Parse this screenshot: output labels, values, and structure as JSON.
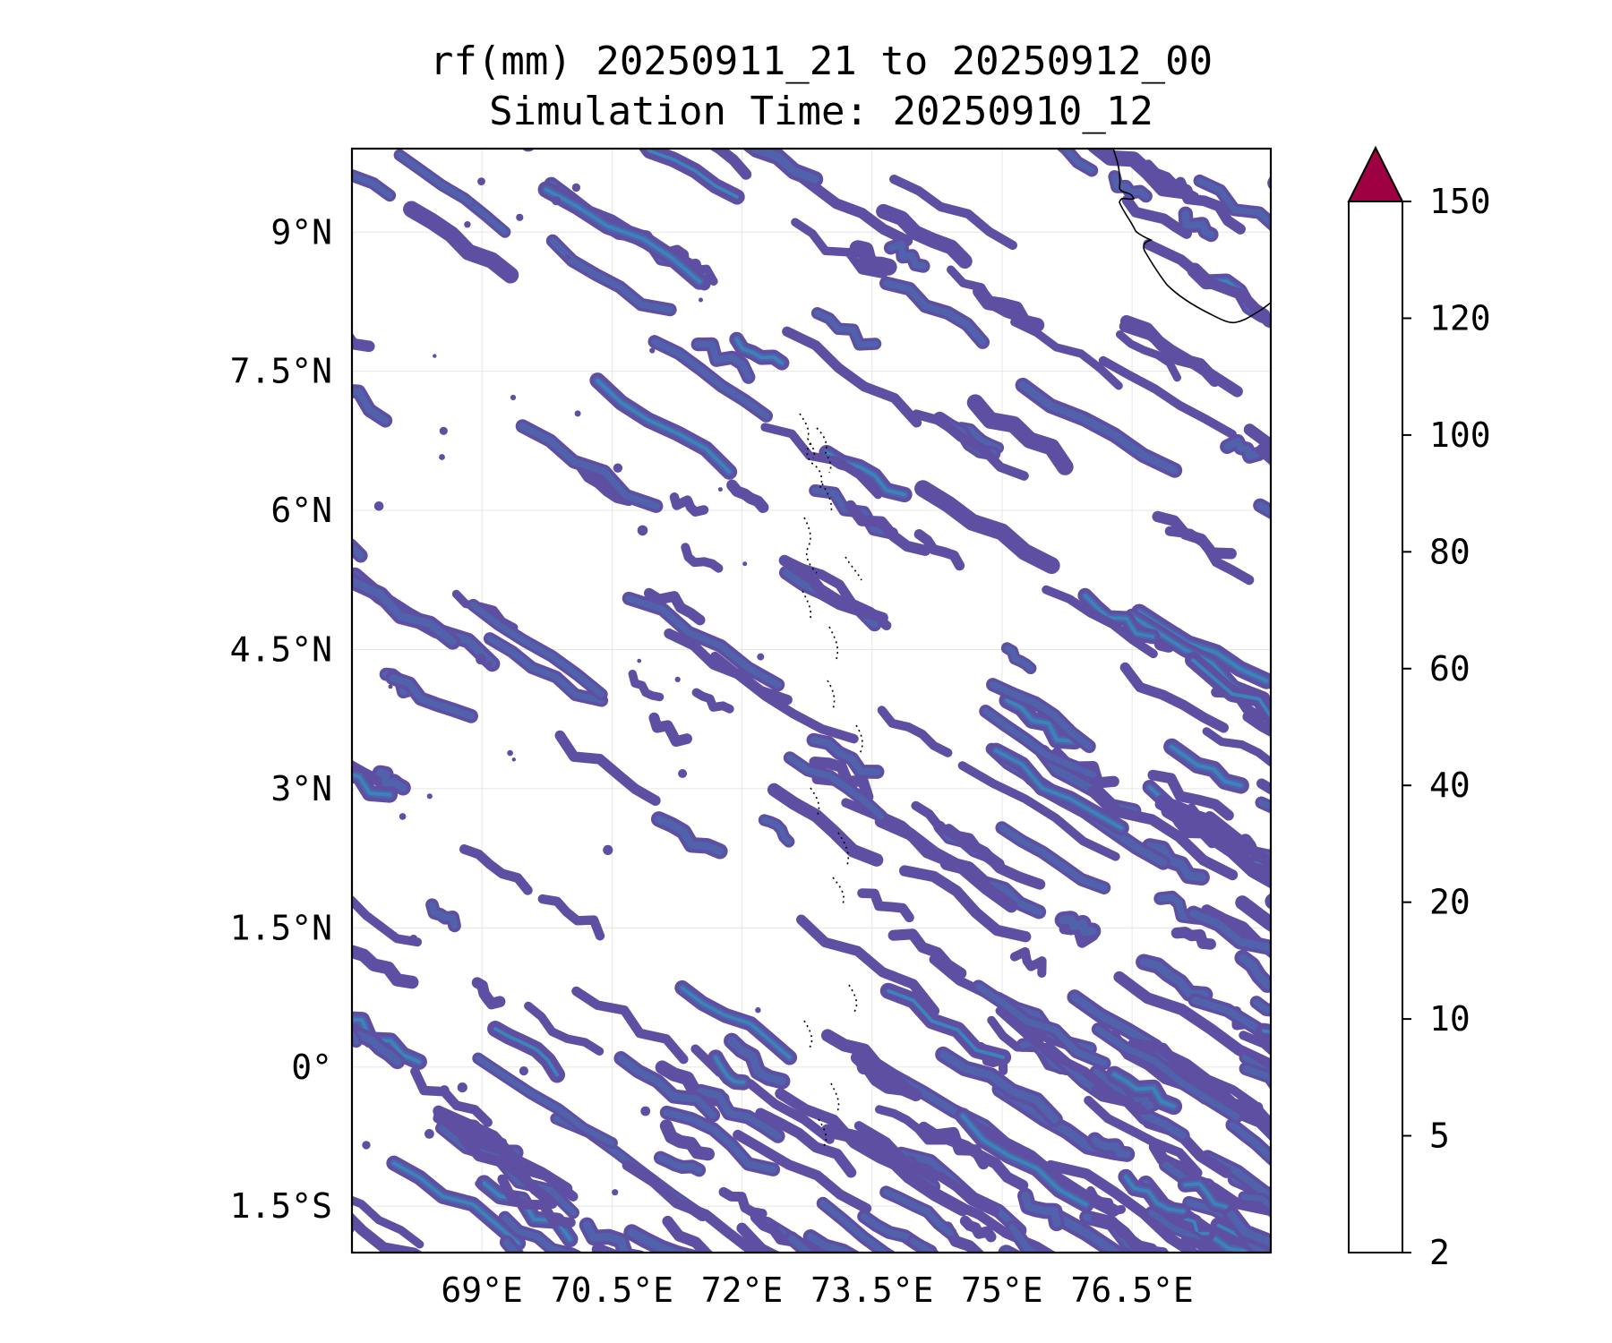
{
  "title": {
    "line1": "rf(mm) 20250911_21 to 20250912_00",
    "line2": "Simulation Time: 20250910_12"
  },
  "map": {
    "lon_range": [
      67.5,
      78.1
    ],
    "lat_range": [
      -2.0,
      9.9
    ],
    "lon_ticks": [
      {
        "value": 69,
        "label": "69°E"
      },
      {
        "value": 70.5,
        "label": "70.5°E"
      },
      {
        "value": 72,
        "label": "72°E"
      },
      {
        "value": 73.5,
        "label": "73.5°E"
      },
      {
        "value": 75,
        "label": "75°E"
      },
      {
        "value": 76.5,
        "label": "76.5°E"
      }
    ],
    "lat_ticks": [
      {
        "value": 9,
        "label": "9°N"
      },
      {
        "value": 7.5,
        "label": "7.5°N"
      },
      {
        "value": 6,
        "label": "6°N"
      },
      {
        "value": 4.5,
        "label": "4.5°N"
      },
      {
        "value": 3,
        "label": "3°N"
      },
      {
        "value": 1.5,
        "label": "1.5°N"
      },
      {
        "value": 0,
        "label": "0°"
      },
      {
        "value": -1.5,
        "label": "1.5°S"
      }
    ],
    "gridlines": true,
    "field": "rainfall accumulation (mm)",
    "pattern": "NW–SE oriented rain bands, mostly 2–10 mm, denser toward east and south; Maldives atoll chain near 73.3°E; Sri Lanka coast at top-right"
  },
  "colorbar": {
    "levels": [
      2,
      5,
      10,
      20,
      40,
      60,
      80,
      100,
      120,
      150
    ],
    "labels": [
      "2",
      "5",
      "10",
      "20",
      "40",
      "60",
      "80",
      "100",
      "120",
      "150"
    ],
    "colors": [
      "#5e4fa2",
      "#4f62ab",
      "#3b84bb",
      "#63bca6",
      "#bde3a1",
      "#f3faad",
      "#fde08b",
      "#f99d59",
      "#d53e4f"
    ],
    "extend_color": "#9e0142",
    "extend": "max"
  },
  "colors": {
    "band_light": "#5e4fa2",
    "band_mid": "#4f62ab",
    "band_strong": "#3b84bb",
    "coast": "#000000",
    "grid": "#e6e6e6"
  }
}
